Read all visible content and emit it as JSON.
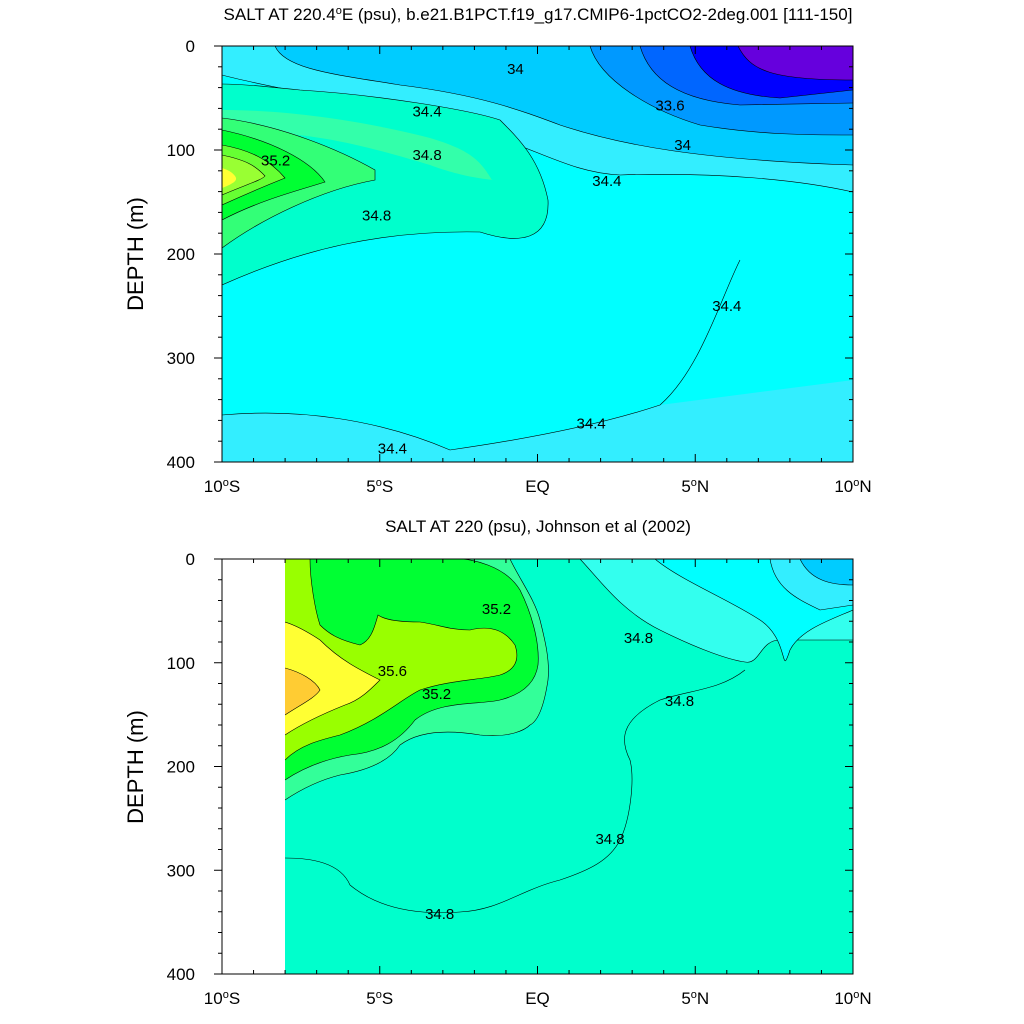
{
  "chart_data": [
    {
      "type": "contour",
      "title": "SALT AT 220.4°E (psu), b.e21.B1PCT.f19_g17.CMIP6-1pctCO2-2deg.001 [111-150]",
      "title_parts": {
        "pre": "SALT AT 220.4",
        "sup": "o",
        "post": "E (psu), b.e21.B1PCT.f19_g17.CMIP6-1pctCO2-2deg.001 [111-150]"
      },
      "ylabel": "DEPTH (m)",
      "xlabel": "",
      "xlim": [
        -10,
        10
      ],
      "ylim": [
        400,
        0
      ],
      "xticks": [
        {
          "value": -10,
          "num": "10",
          "sup": "o",
          "hem": "S"
        },
        {
          "value": -5,
          "num": "5",
          "sup": "o",
          "hem": "S"
        },
        {
          "value": 0,
          "num": "EQ",
          "sup": "",
          "hem": ""
        },
        {
          "value": 5,
          "num": "5",
          "sup": "o",
          "hem": "N"
        },
        {
          "value": 10,
          "num": "10",
          "sup": "o",
          "hem": "N"
        }
      ],
      "yticks": [
        "0",
        "100",
        "200",
        "300",
        "400"
      ],
      "ytick_values": [
        0,
        100,
        200,
        300,
        400
      ],
      "contour_labels": [
        {
          "text": "34",
          "lat": -0.7,
          "depth": 22
        },
        {
          "text": "33.6",
          "lat": 4.2,
          "depth": 57
        },
        {
          "text": "34.4",
          "lat": -3.5,
          "depth": 63
        },
        {
          "text": "34",
          "lat": 4.6,
          "depth": 95
        },
        {
          "text": "34.8",
          "lat": -3.5,
          "depth": 105
        },
        {
          "text": "35.2",
          "lat": -8.3,
          "depth": 110
        },
        {
          "text": "34.4",
          "lat": 2.2,
          "depth": 130
        },
        {
          "text": "34.8",
          "lat": -5.1,
          "depth": 163
        },
        {
          "text": "34.4",
          "lat": 6.0,
          "depth": 250
        },
        {
          "text": "34.4",
          "lat": 1.7,
          "depth": 363
        },
        {
          "text": "34.4",
          "lat": -4.6,
          "depth": 387
        }
      ]
    },
    {
      "type": "contour",
      "title": "SALT AT 220 (psu), Johnson et al (2002)",
      "title_parts": {
        "pre": "SALT AT 220 (psu), Johnson et al (2002)",
        "sup": "",
        "post": ""
      },
      "ylabel": "DEPTH (m)",
      "xlabel": "",
      "xlim": [
        -10,
        10
      ],
      "ylim": [
        400,
        0
      ],
      "data_start_lat": -8,
      "xticks": [
        {
          "value": -10,
          "num": "10",
          "sup": "o",
          "hem": "S"
        },
        {
          "value": -5,
          "num": "5",
          "sup": "o",
          "hem": "S"
        },
        {
          "value": 0,
          "num": "EQ",
          "sup": "",
          "hem": ""
        },
        {
          "value": 5,
          "num": "5",
          "sup": "o",
          "hem": "N"
        },
        {
          "value": 10,
          "num": "10",
          "sup": "o",
          "hem": "N"
        }
      ],
      "yticks": [
        "0",
        "100",
        "200",
        "300",
        "400"
      ],
      "ytick_values": [
        0,
        100,
        200,
        300,
        400
      ],
      "contour_labels": [
        {
          "text": "35.2",
          "lat": -1.3,
          "depth": 48
        },
        {
          "text": "34.8",
          "lat": 3.2,
          "depth": 76
        },
        {
          "text": "35.6",
          "lat": -4.6,
          "depth": 108
        },
        {
          "text": "35.2",
          "lat": -3.2,
          "depth": 130
        },
        {
          "text": "34.8",
          "lat": 4.5,
          "depth": 137
        },
        {
          "text": "34.8",
          "lat": 2.3,
          "depth": 270
        },
        {
          "text": "34.8",
          "lat": -3.1,
          "depth": 342
        }
      ]
    }
  ]
}
